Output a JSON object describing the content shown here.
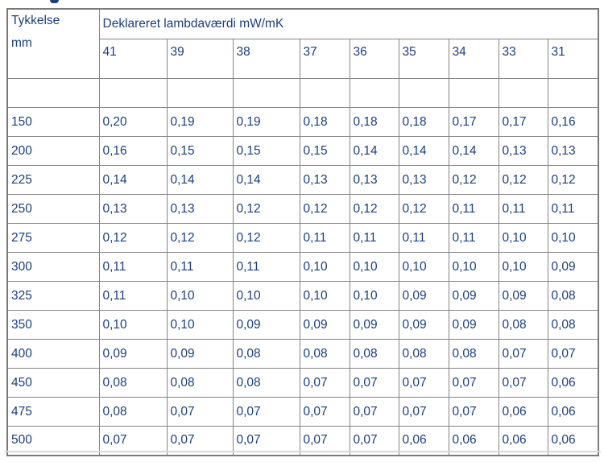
{
  "colors": {
    "text": "#1c3e7d",
    "cell_border": "#848484",
    "outer_border": "#7a7a7a",
    "background": "#ffffff",
    "bottom_rule": "#d9d9d9"
  },
  "table": {
    "corner": {
      "line1": "Tykkelse",
      "line2": "mm"
    },
    "group_header": "Deklareret lambdaværdi mW/mK",
    "columns": [
      "41",
      "39",
      "38",
      "37",
      "36",
      "35",
      "34",
      "33",
      "31"
    ],
    "empty_row": [
      "",
      "",
      "",
      "",
      "",
      "",
      "",
      "",
      "",
      ""
    ],
    "rows": [
      {
        "thickness": "150",
        "values": [
          "0,20",
          "0,19",
          "0,19",
          "0,18",
          "0,18",
          "0,18",
          "0,17",
          "0,17",
          "0,16"
        ]
      },
      {
        "thickness": "200",
        "values": [
          "0,16",
          "0,15",
          "0,15",
          "0,15",
          "0,14",
          "0,14",
          "0,14",
          "0,13",
          "0,13"
        ]
      },
      {
        "thickness": "225",
        "values": [
          "0,14",
          "0,14",
          "0,14",
          "0,13",
          "0,13",
          "0,13",
          "0,12",
          "0,12",
          "0,12"
        ]
      },
      {
        "thickness": "250",
        "values": [
          "0,13",
          "0,13",
          "0,12",
          "0,12",
          "0,12",
          "0,12",
          "0,11",
          "0,11",
          "0,11"
        ]
      },
      {
        "thickness": "275",
        "values": [
          "0,12",
          "0,12",
          "0,12",
          "0,11",
          "0,11",
          "0,11",
          "0,11",
          "0,10",
          "0,10"
        ]
      },
      {
        "thickness": "300",
        "values": [
          "0,11",
          "0,11",
          "0,11",
          "0,10",
          "0,10",
          "0,10",
          "0,10",
          "0,10",
          "0,09"
        ]
      },
      {
        "thickness": "325",
        "values": [
          "0,11",
          "0,10",
          "0,10",
          "0,10",
          "0,10",
          "0,09",
          "0,09",
          "0,09",
          "0,08"
        ]
      },
      {
        "thickness": "350",
        "values": [
          "0,10",
          "0,10",
          "0,09",
          "0,09",
          "0,09",
          "0,09",
          "0,09",
          "0,08",
          "0,08"
        ]
      },
      {
        "thickness": "400",
        "values": [
          "0,09",
          "0,09",
          "0,08",
          "0,08",
          "0,08",
          "0,08",
          "0,08",
          "0,07",
          "0,07"
        ]
      },
      {
        "thickness": "450",
        "values": [
          "0,08",
          "0,08",
          "0,08",
          "0,07",
          "0,07",
          "0,07",
          "0,07",
          "0,07",
          "0,06"
        ]
      },
      {
        "thickness": "475",
        "values": [
          "0,08",
          "0,07",
          "0,07",
          "0,07",
          "0,07",
          "0,07",
          "0,07",
          "0,06",
          "0,06"
        ]
      },
      {
        "thickness": "500",
        "values": [
          "0,07",
          "0,07",
          "0,07",
          "0,07",
          "0,07",
          "0,06",
          "0,06",
          "0,06",
          "0,06"
        ]
      }
    ]
  }
}
